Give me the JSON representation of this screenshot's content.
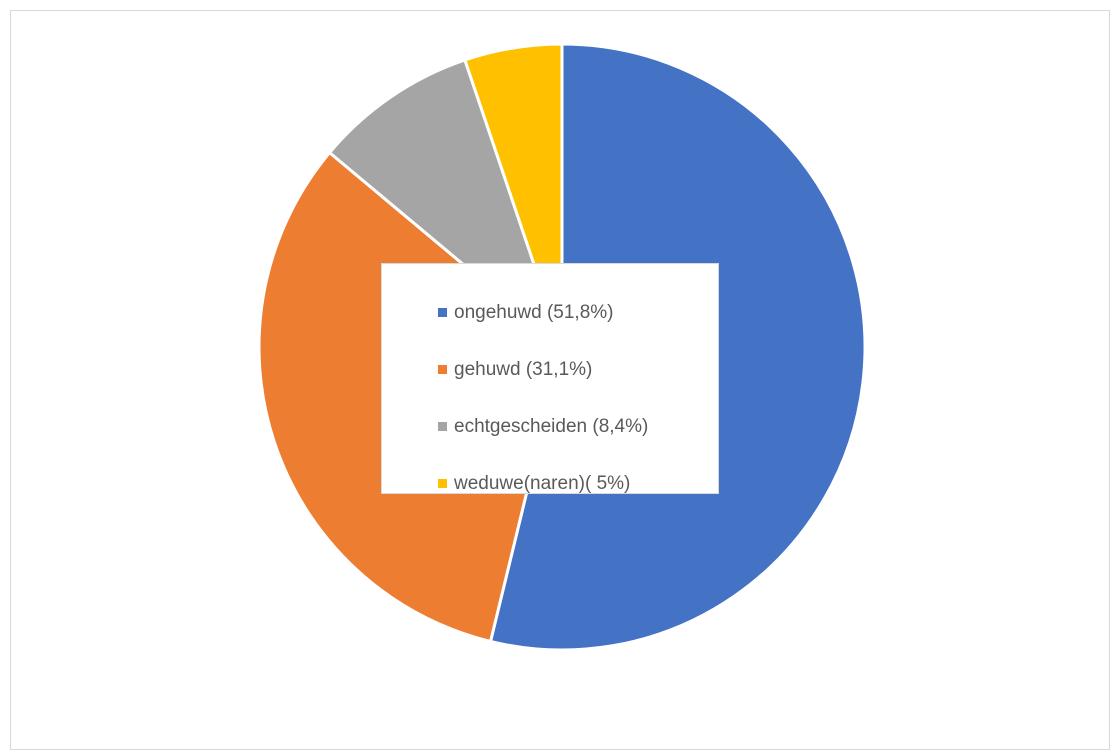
{
  "chart_data": {
    "type": "pie",
    "title": "",
    "start_angle_deg": 0,
    "direction": "clockwise",
    "legend_position": "center",
    "slices": [
      {
        "label": "ongehuwd (51,8%)",
        "value": 51.8,
        "color": "#4472C4"
      },
      {
        "label": "gehuwd (31,1%)",
        "value": 31.1,
        "color": "#ED7D31"
      },
      {
        "label": "echtgescheiden (8,4%)",
        "value": 8.4,
        "color": "#A5A5A5"
      },
      {
        "label": "weduwe(naren)( 5%)",
        "value": 5,
        "color": "#FFC000"
      }
    ]
  }
}
